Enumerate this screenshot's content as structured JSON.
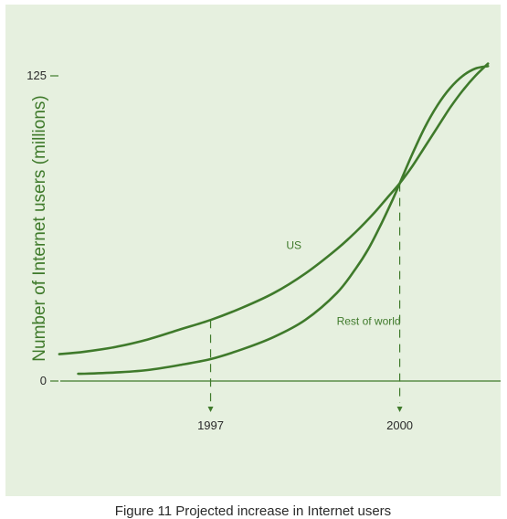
{
  "caption": "Figure 11 Projected increase in Internet users",
  "colors": {
    "background": "#e6f0df",
    "line": "#3f7a2b",
    "text": "#2a2a2a"
  },
  "chart_data": {
    "type": "line",
    "title": "",
    "xlabel": "",
    "ylabel": "Number of Internet users (millions)",
    "ylim": [
      0,
      125
    ],
    "xlim": [
      1994.5,
      2001.6
    ],
    "y_ticks": [
      {
        "value": 0,
        "label": "0"
      },
      {
        "value": 125,
        "label": "125"
      }
    ],
    "x_ticks": [
      {
        "value": 1997,
        "label": "1997"
      },
      {
        "value": 2000,
        "label": "2000"
      }
    ],
    "series": [
      {
        "name": "US",
        "x": [
          1994.6,
          1995.0,
          1995.5,
          1996.0,
          1996.5,
          1997.0,
          1997.5,
          1998.0,
          1998.5,
          1999.0,
          1999.3,
          1999.6,
          1999.8,
          2000.0,
          2000.2,
          2000.4,
          2000.6,
          2000.8,
          2001.0,
          2001.2,
          2001.4
        ],
        "y": [
          11,
          12,
          14,
          17,
          21,
          25,
          30,
          36,
          44,
          54,
          61,
          69,
          75,
          81,
          88,
          96,
          104,
          112,
          119,
          125,
          130
        ]
      },
      {
        "name": "Rest of world",
        "x": [
          1994.9,
          1995.0,
          1995.5,
          1996.0,
          1996.5,
          1997.0,
          1997.5,
          1998.0,
          1998.5,
          1999.0,
          1999.3,
          1999.5,
          1999.7,
          1999.9,
          2000.0,
          2000.2,
          2000.4,
          2000.6,
          2000.8,
          2001.0,
          2001.2,
          2001.4
        ],
        "y": [
          3,
          3,
          3.5,
          4.5,
          6.5,
          9,
          13,
          18,
          25,
          36,
          46,
          54,
          64,
          75,
          81,
          93,
          104,
          113,
          120,
          125,
          128,
          129
        ]
      }
    ],
    "annotations": [
      {
        "text": "US",
        "x": 1998.2,
        "y": 54
      },
      {
        "text": "Rest of world",
        "x": 1999.0,
        "y": 23
      }
    ]
  }
}
